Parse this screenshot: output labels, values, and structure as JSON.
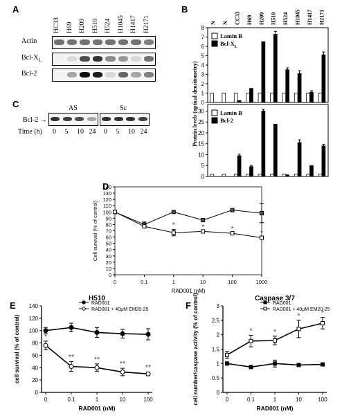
{
  "panels": {
    "A": {
      "letter": "A",
      "lanes": [
        "HC33",
        "H69",
        "H209",
        "H510",
        "H524",
        "H1045",
        "H1417",
        "H2171"
      ],
      "rows": [
        {
          "label": "Actin",
          "intensity": [
            0.55,
            0.55,
            0.55,
            0.55,
            0.55,
            0.55,
            0.55,
            0.5
          ]
        },
        {
          "label": "Bcl-X",
          "sub": "L",
          "intensity": [
            0.05,
            0.15,
            0.7,
            0.8,
            0.45,
            0.4,
            0.15,
            0.55
          ]
        },
        {
          "label": "Bcl-2",
          "intensity": [
            0.05,
            0.35,
            0.95,
            0.9,
            0.15,
            0.6,
            0.35,
            0.5
          ]
        }
      ]
    },
    "B": {
      "letter": "B"
    },
    "C": {
      "letter": "C",
      "row_label": "Bcl-2",
      "groups": [
        "AS",
        "Sc"
      ],
      "time_label": "Time (h)",
      "times": [
        "0",
        "5",
        "10",
        "24",
        "0",
        "5",
        "10",
        "24"
      ],
      "intensity": [
        0.8,
        0.75,
        0.7,
        0.35,
        0.8,
        0.8,
        0.8,
        0.75
      ]
    },
    "D": {
      "letter": "D"
    },
    "E": {
      "letter": "E"
    },
    "F": {
      "letter": "F"
    }
  },
  "chart_data": [
    {
      "id": "B-top",
      "type": "bar",
      "categories": [
        "N",
        "N",
        "CC33",
        "H69",
        "H209",
        "H510",
        "H524",
        "H1045",
        "H1417",
        "H2171"
      ],
      "series": [
        {
          "name": "Lamin B",
          "values": [
            1,
            1,
            1,
            1,
            1,
            1,
            1,
            1,
            1,
            1
          ],
          "color": "#ffffff"
        },
        {
          "name": "Bcl-X",
          "name_sub": "L",
          "values": [
            0,
            0,
            0.2,
            1.5,
            6.5,
            7.3,
            3.5,
            3.1,
            1.1,
            5.1
          ],
          "errors": [
            0,
            0,
            0,
            0,
            0,
            0.3,
            0.2,
            0.3,
            0.15,
            0.3
          ],
          "color": "#000000"
        }
      ],
      "ylim": [
        0,
        8
      ],
      "yticks": [
        0,
        1,
        2,
        3,
        4,
        5,
        6,
        7,
        8
      ]
    },
    {
      "id": "B-bottom",
      "type": "bar",
      "categories": [
        "N",
        "N",
        "CC33",
        "H69",
        "H209",
        "H510",
        "H524",
        "H1045",
        "H1417",
        "H2171"
      ],
      "series": [
        {
          "name": "Lamin B",
          "values": [
            1,
            1,
            1,
            1,
            1,
            1,
            1,
            1,
            1,
            1
          ],
          "color": "#ffffff"
        },
        {
          "name": "Bcl-2",
          "values": [
            0,
            0,
            9.5,
            4.5,
            30,
            24,
            0.5,
            15.5,
            5,
            14
          ],
          "errors": [
            0,
            0,
            0.7,
            0.5,
            0.8,
            0,
            0.3,
            1.3,
            0,
            0.8
          ],
          "color": "#000000"
        }
      ],
      "ylim": [
        0,
        33
      ],
      "yticks": [
        0,
        5,
        10,
        15,
        20,
        25,
        30
      ]
    },
    {
      "id": "B-shared",
      "ylabel": "Protein levels (optical densitometry)"
    },
    {
      "id": "D",
      "type": "line",
      "x": [
        "0",
        "0.1",
        "1",
        "10",
        "100",
        "1000"
      ],
      "xlabel": "RAD001 (nM)",
      "ylabel": "Cell survival (% of control)",
      "ylim": [
        0,
        140
      ],
      "yticks": [
        0,
        10,
        20,
        30,
        40,
        50,
        60,
        70,
        80,
        90,
        100,
        110,
        120,
        130,
        140
      ],
      "series": [
        {
          "values": [
            100,
            80,
            100,
            87,
            103,
            98
          ],
          "errors": [
            0,
            4,
            0,
            0,
            0,
            15
          ],
          "fill": "#555555"
        },
        {
          "values": [
            100,
            77,
            67,
            69,
            66,
            59
          ],
          "errors": [
            0,
            0,
            5,
            0,
            0,
            0
          ],
          "fill": "#ffffff",
          "stars": [
            false,
            false,
            true,
            true,
            true,
            true
          ]
        }
      ]
    },
    {
      "id": "E",
      "type": "line",
      "title": "H510",
      "x": [
        "0",
        "0.1",
        "1",
        "10",
        "100"
      ],
      "xlabel": "RAD001 (nM)",
      "ylabel": "cell survival (% of control)",
      "ylim": [
        0,
        140
      ],
      "yticks": [
        0,
        20,
        40,
        60,
        80,
        100,
        120,
        140
      ],
      "series": [
        {
          "name": "RAD001",
          "values": [
            100,
            105,
            97,
            95,
            94
          ],
          "errors": [
            5,
            7,
            8,
            7,
            9
          ],
          "fill": "#000000"
        },
        {
          "name": "RAD001 + 40μM EM20-25",
          "values": [
            76,
            42,
            40,
            33,
            30
          ],
          "errors": [
            7,
            8,
            6,
            6,
            3
          ],
          "fill": "#ffffff",
          "stars": [
            "*",
            "**",
            "**",
            "**",
            "**"
          ]
        }
      ]
    },
    {
      "id": "F",
      "type": "line",
      "title": "Caspase 3/7",
      "x": [
        "0",
        "0.1",
        "1",
        "10",
        "100"
      ],
      "xlabel": "RAD001 (nM)",
      "ylabel": "cell number/caspase activity (% of control)",
      "ylim": [
        0,
        3
      ],
      "yticks": [
        0,
        0.5,
        1,
        1.5,
        2,
        2.5,
        3
      ],
      "series": [
        {
          "name": "RAD001",
          "values": [
            1,
            0.88,
            1,
            0.95,
            0.97
          ],
          "errors": [
            0,
            0,
            0.12,
            0,
            0
          ],
          "fill": "#000000"
        },
        {
          "name": "RAD001 + 40μM EM20-25",
          "values": [
            1.3,
            1.78,
            1.8,
            2.2,
            2.4
          ],
          "errors": [
            0.12,
            0.2,
            0.15,
            0.3,
            0.2
          ],
          "fill": "#ffffff",
          "stars": [
            "",
            "*",
            "*",
            "*",
            "*"
          ]
        }
      ]
    }
  ]
}
